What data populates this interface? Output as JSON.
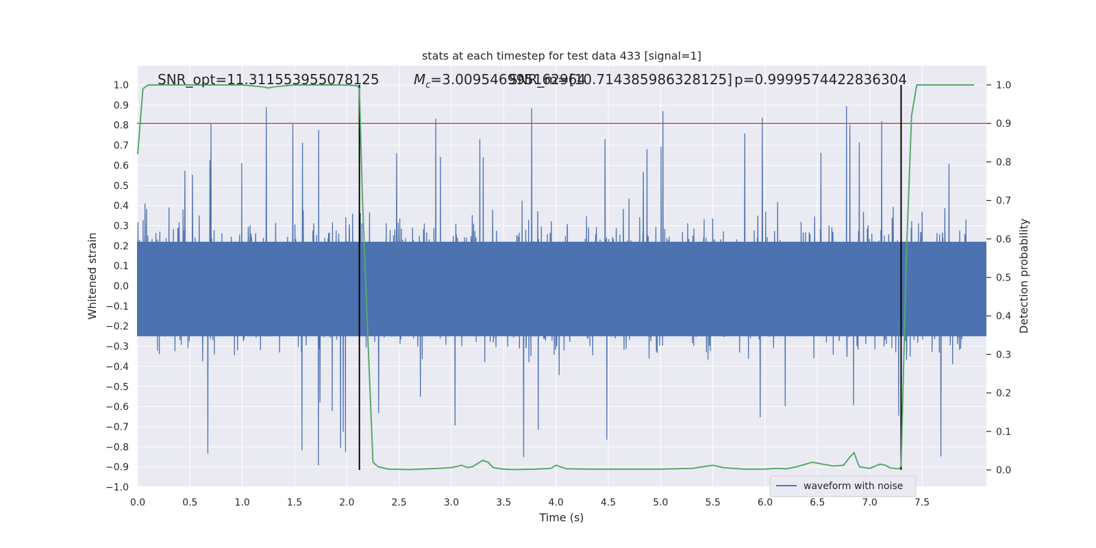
{
  "chart_data": {
    "type": "line",
    "title": "stats at each timestep for test data 433 [signal=1]",
    "xlabel": "Time (s)",
    "ylabel": "Whitened strain",
    "ylabel_right": "Detection probability",
    "xlim": [
      0.0,
      8.0
    ],
    "ylim": [
      -1.0,
      1.0
    ],
    "ylim_right": [
      0.0,
      1.0
    ],
    "x_ticks": [
      "0.0",
      "0.5",
      "1.0",
      "1.5",
      "2.0",
      "2.5",
      "3.0",
      "3.5",
      "4.0",
      "4.5",
      "5.0",
      "5.5",
      "6.0",
      "6.5",
      "7.0",
      "7.5"
    ],
    "y_ticks": [
      "−1.0",
      "−0.9",
      "−0.8",
      "−0.7",
      "−0.6",
      "−0.5",
      "−0.4",
      "−0.3",
      "−0.2",
      "−0.1",
      "0.0",
      "0.1",
      "0.2",
      "0.3",
      "0.4",
      "0.5",
      "0.6",
      "0.7",
      "0.8",
      "0.9",
      "1.0"
    ],
    "y_ticks_right": [
      "0.0",
      "0.1",
      "0.2",
      "0.3",
      "0.4",
      "0.5",
      "0.6",
      "0.7",
      "0.8",
      "0.9",
      "1.0"
    ],
    "grid": true,
    "legend": {
      "position": "lower-right",
      "entries": [
        "waveform with noise"
      ]
    },
    "annotations": [
      "SNR_opt=11.311553955078125",
      "M_c=3.009546995162964",
      "SNR_m=[10.714385986328125]",
      "p=0.9999574422836304"
    ],
    "threshold_line": {
      "value_right": 0.9,
      "color": "#c44e52"
    },
    "vertical_markers": [
      2.12,
      7.3
    ],
    "waveform": {
      "name": "waveform with noise",
      "color": "#4c72b0",
      "amplitude_typical": 0.4,
      "amplitude_max": 1.0
    },
    "series": [
      {
        "axis": "right",
        "color": "#55a868",
        "x": [
          0.0,
          0.05,
          0.1,
          0.2,
          0.5,
          1.0,
          1.2,
          1.25,
          1.3,
          1.5,
          2.0,
          2.1,
          2.12,
          2.15,
          2.2,
          2.25,
          2.3,
          2.4,
          2.6,
          2.8,
          3.0,
          3.1,
          3.15,
          3.2,
          3.3,
          3.35,
          3.4,
          3.5,
          3.6,
          3.8,
          3.95,
          4.0,
          4.1,
          4.3,
          4.6,
          5.0,
          5.3,
          5.45,
          5.5,
          5.6,
          5.8,
          6.0,
          6.1,
          6.2,
          6.3,
          6.45,
          6.55,
          6.65,
          6.75,
          6.8,
          6.85,
          6.9,
          7.0,
          7.1,
          7.15,
          7.2,
          7.28,
          7.3,
          7.35,
          7.4,
          7.45,
          7.5,
          7.6,
          7.8,
          8.0
        ],
        "y": [
          0.82,
          0.99,
          1.0,
          1.0,
          1.0,
          1.0,
          0.995,
          0.992,
          0.995,
          1.0,
          1.0,
          0.998,
          0.99,
          0.7,
          0.35,
          0.02,
          0.008,
          0.002,
          0.001,
          0.003,
          0.006,
          0.012,
          0.006,
          0.008,
          0.025,
          0.02,
          0.006,
          0.002,
          0.001,
          0.002,
          0.004,
          0.012,
          0.003,
          0.002,
          0.002,
          0.002,
          0.004,
          0.01,
          0.012,
          0.006,
          0.002,
          0.002,
          0.004,
          0.003,
          0.008,
          0.02,
          0.015,
          0.01,
          0.012,
          0.03,
          0.045,
          0.008,
          0.004,
          0.015,
          0.012,
          0.005,
          0.003,
          0.01,
          0.55,
          0.92,
          1.0,
          1.0,
          1.0,
          1.0,
          1.0
        ]
      }
    ]
  }
}
